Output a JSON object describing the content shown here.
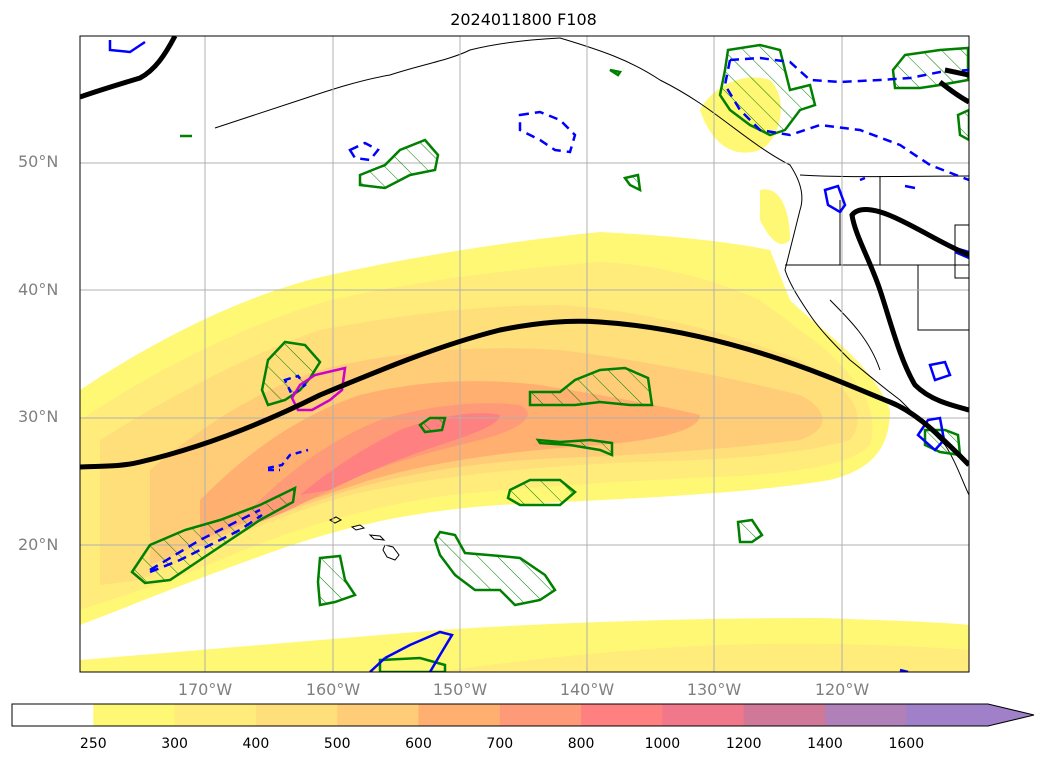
{
  "title": "2024011800 F108",
  "map": {
    "lat_labels": [
      "50°N",
      "40°N",
      "30°N",
      "20°N"
    ],
    "lon_labels": [
      "170°W",
      "160°W",
      "150°W",
      "140°W",
      "130°W",
      "120°W"
    ],
    "colors": {
      "jet_axis": "#000000",
      "hatched_contour": "#008000",
      "blue_contour": "#0000ff",
      "magenta_contour": "#cc00cc",
      "gridline": "#b0b0b0"
    }
  },
  "colorbar": {
    "labels": [
      "250",
      "300",
      "400",
      "500",
      "600",
      "700",
      "800",
      "1000",
      "1200",
      "1400",
      "1600"
    ],
    "colors": [
      "#ffffff",
      "#fff875",
      "#ffec7a",
      "#ffdf7a",
      "#ffcc78",
      "#ffb070",
      "#ff9a78",
      "#ff8080",
      "#f0788a",
      "#d07898",
      "#b080b8",
      "#a080c8"
    ],
    "extend": "max"
  }
}
